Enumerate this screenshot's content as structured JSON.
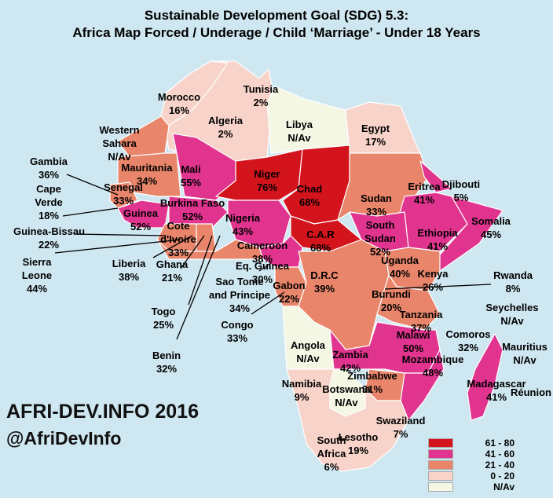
{
  "title_line1": "Sustainable Development Goal (SDG) 5.3:",
  "title_line2": "Africa Map Forced / Underage / Child ‘Marriage’  - Under 18 Years",
  "brand_line1": "AFRI-DEV.INFO 2016",
  "brand_line2": "@AfriDevInfo",
  "colors": {
    "ocean": "#cfe7f1",
    "c61_80": "#d4141c",
    "c41_60": "#e0348f",
    "c21_40": "#e8856a",
    "c0_20": "#f7d3c9",
    "na": "#f3f7e4",
    "border": "#ffffff"
  },
  "legend": [
    {
      "label": "61 - 80",
      "color": "#d4141c"
    },
    {
      "label": "41 - 60",
      "color": "#e0348f"
    },
    {
      "label": "21 - 40",
      "color": "#e8856a"
    },
    {
      "label": "0  - 20",
      "color": "#f7d3c9"
    },
    {
      "label": "N/Av",
      "color": "#f3f7e4"
    }
  ],
  "countries": [
    {
      "name": "Morocco",
      "value": "16%"
    },
    {
      "name": "Tunisia",
      "value": "2%"
    },
    {
      "name": "Algeria",
      "value": "2%"
    },
    {
      "name": "Libya",
      "value": "N/Av"
    },
    {
      "name": "Egypt",
      "value": "17%"
    },
    {
      "name": "Western Sahara",
      "value": "N/Av"
    },
    {
      "name": "Mauritania",
      "value": "34%"
    },
    {
      "name": "Mali",
      "value": "55%"
    },
    {
      "name": "Niger",
      "value": "76%"
    },
    {
      "name": "Chad",
      "value": "68%"
    },
    {
      "name": "Sudan",
      "value": "33%"
    },
    {
      "name": "Eritrea",
      "value": "41%"
    },
    {
      "name": "Djibouti",
      "value": "5%"
    },
    {
      "name": "Somalia",
      "value": "45%"
    },
    {
      "name": "Ethiopia",
      "value": "41%"
    },
    {
      "name": "South Sudan",
      "value": "52%"
    },
    {
      "name": "C.A.R",
      "value": "68%"
    },
    {
      "name": "Gambia",
      "value": "36%"
    },
    {
      "name": "Cape Verde",
      "value": "18%"
    },
    {
      "name": "Senegal",
      "value": "33%"
    },
    {
      "name": "Guinea",
      "value": "52%"
    },
    {
      "name": "Burkina Faso",
      "value": "52%"
    },
    {
      "name": "Nigeria",
      "value": "43%"
    },
    {
      "name": "Guinea-Bissau",
      "value": "22%"
    },
    {
      "name": "Cote d'Ivoire",
      "value": "33%"
    },
    {
      "name": "Sierra Leone",
      "value": "44%"
    },
    {
      "name": "Liberia",
      "value": "38%"
    },
    {
      "name": "Ghana",
      "value": "21%"
    },
    {
      "name": "Cameroon",
      "value": "38%"
    },
    {
      "name": "Eq. Guinea",
      "value": "30%"
    },
    {
      "name": "Gabon",
      "value": "22%"
    },
    {
      "name": "Sao Tome and Principe",
      "value": "34%"
    },
    {
      "name": "Togo",
      "value": "25%"
    },
    {
      "name": "Benin",
      "value": "32%"
    },
    {
      "name": "Congo",
      "value": "33%"
    },
    {
      "name": "D.R.C",
      "value": "39%"
    },
    {
      "name": "Uganda",
      "value": "40%"
    },
    {
      "name": "Kenya",
      "value": "26%"
    },
    {
      "name": "Rwanda",
      "value": "8%"
    },
    {
      "name": "Burundi",
      "value": "20%"
    },
    {
      "name": "Tanzania",
      "value": "37%"
    },
    {
      "name": "Seychelles",
      "value": "N/Av"
    },
    {
      "name": "Comoros",
      "value": "32%"
    },
    {
      "name": "Angola",
      "value": "N/Av"
    },
    {
      "name": "Zambia",
      "value": "42%"
    },
    {
      "name": "Malawi",
      "value": "50%"
    },
    {
      "name": "Mozambique",
      "value": "48%"
    },
    {
      "name": "Mauritius",
      "value": "N/Av"
    },
    {
      "name": "Madagascar",
      "value": "41%"
    },
    {
      "name": "Réunion",
      "value": ""
    },
    {
      "name": "Zimbabwe",
      "value": "31%"
    },
    {
      "name": "Namibia",
      "value": "9%"
    },
    {
      "name": "Botswana",
      "value": "N/Av"
    },
    {
      "name": "Swaziland",
      "value": "7%"
    },
    {
      "name": "Lesotho",
      "value": "19%"
    },
    {
      "name": "South Africa",
      "value": "6%"
    }
  ]
}
